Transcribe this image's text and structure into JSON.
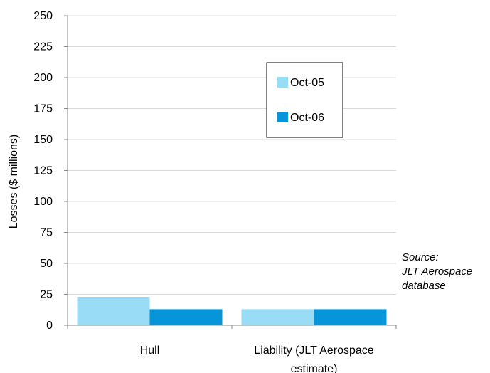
{
  "chart_data": {
    "type": "bar",
    "ylabel": "Losses ($ millions)",
    "ylim": [
      0,
      250
    ],
    "yticks": [
      "0",
      "25",
      "50",
      "75",
      "100",
      "125",
      "150",
      "175",
      "200",
      "225",
      "250"
    ],
    "categories": [
      "Hull",
      "Liability (JLT Aerospace estimate)"
    ],
    "category_lines": [
      [
        "Hull"
      ],
      [
        "Liability (JLT Aerospace",
        "estimate)"
      ]
    ],
    "series": [
      {
        "name": "Oct-05",
        "values": [
          23,
          13
        ],
        "color": "#99dcf5"
      },
      {
        "name": "Oct-06",
        "values": [
          13,
          13
        ],
        "color": "#0595d8"
      }
    ],
    "grid": true,
    "legend_position": "top-right"
  },
  "annotation": {
    "source_line1": "Source:",
    "source_line2": "JLT Aerospace",
    "source_line3": "database"
  }
}
